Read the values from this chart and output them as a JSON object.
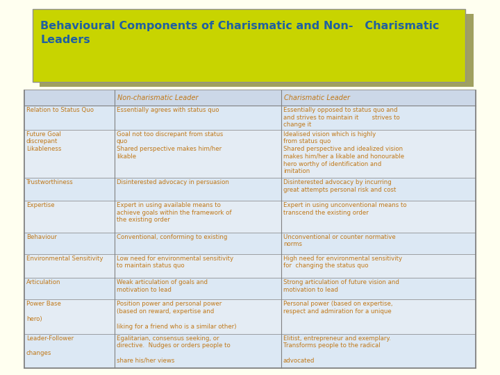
{
  "title_line1": "Behavioural Components of Charismatic and Non-   Charismatic",
  "title_line2": "Leaders",
  "title_bg": "#c8d400",
  "title_shadow": "#a0a060",
  "title_text_color": "#2060a0",
  "page_bg": "#fffff0",
  "table_bg": "#e4ecf4",
  "header_bg": "#ccd8e8",
  "border_color": "#808080",
  "text_color": "#c07818",
  "header_text_color": "#c07818",
  "col_headers": [
    "",
    "Non-charismatic Leader",
    "Charismatic Leader"
  ],
  "rows": [
    {
      "col0": "Relation to Status Quo",
      "col1": "Essentially agrees with status quo",
      "col2": "Essentially opposed to status quo and\nand strives to maintain it       strives to\nchange it"
    },
    {
      "col0": "Future Goal\ndiscrepant\nLikableness",
      "col1": "Goal not too discrepant from status\nquo\nShared perspective makes him/her\nlikable",
      "col2": "Idealised vision which is highly\nfrom status quo\nShared perspective and idealized vision\nmakes him/her a likable and honourable\nhero worthy of identification and\nimitation"
    },
    {
      "col0": "Trustworthiness",
      "col1": "Disinterested advocacy in persuasion",
      "col2": "Disinterested advocacy by incurring\ngreat attempts personal risk and cost"
    },
    {
      "col0": "Expertise",
      "col1": "Expert in using available means to\nachieve goals within the framework of\nthe existing order",
      "col2": "Expert in using unconventional means to\ntranscend the existing order"
    },
    {
      "col0": "Behaviour",
      "col1": "Conventional, conforming to existing",
      "col2": "Unconventional or counter normative\nnorms"
    },
    {
      "col0": "Environmental Sensitivity",
      "col1": "Low need for environmental sensitivity\nto maintain status quo",
      "col2": "High need for environmental sensitivity\nfor  changing the status quo"
    },
    {
      "col0": "Articulation",
      "col1": "Weak articulation of goals and\nmotivation to lead",
      "col2": "Strong articulation of future vision and\nmotivation to lead"
    },
    {
      "col0": "Power Base\n\nhero)",
      "col1": "Position power and personal power\n(based on reward, expertise and\n\nliking for a friend who is a similar other)",
      "col2": "Personal power (based on expertise,\nrespect and admiration for a unique"
    },
    {
      "col0": "Leader-Follower\n\nchanges",
      "col1": "Egalitarian, consensus seeking, or\ndirective.  Nudges or orders people to\n\nshare his/her views",
      "col2": "Elitist, entrepreneur and exemplary.\nTransforms people to the radical\n\nadvocated"
    }
  ]
}
